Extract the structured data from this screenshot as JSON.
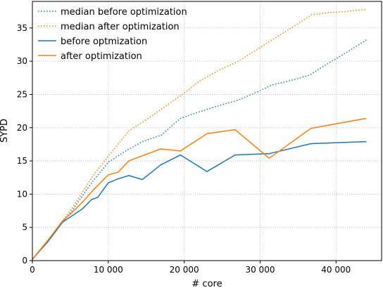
{
  "chart_data": {
    "type": "line",
    "xlabel": "# core",
    "ylabel": "SYPD",
    "xlim": [
      0,
      46000
    ],
    "ylim": [
      0,
      39
    ],
    "xticks": [
      0,
      10000,
      20000,
      30000,
      40000
    ],
    "xtick_labels": [
      "0",
      "10 000",
      "20 000",
      "30 000",
      "40 000"
    ],
    "yticks": [
      0,
      5,
      10,
      15,
      20,
      25,
      30,
      35
    ],
    "ytick_labels": [
      "0",
      "5",
      "10",
      "15",
      "20",
      "25",
      "30",
      "35"
    ],
    "grid": true,
    "legend_position": "top-left",
    "series": [
      {
        "name": "median before optimization",
        "color": "#1f77b4",
        "style": "dotted",
        "x": [
          0,
          2000,
          4000,
          5300,
          6600,
          8000,
          10000,
          12000,
          14500,
          17000,
          19500,
          22000,
          24500,
          27000,
          29500,
          31500,
          34000,
          36500,
          39000,
          41500,
          44000
        ],
        "y": [
          0.2,
          3.0,
          5.8,
          7.6,
          9.8,
          12.0,
          14.8,
          16.3,
          17.9,
          18.9,
          21.4,
          22.4,
          23.3,
          24.1,
          25.3,
          26.4,
          27.1,
          27.9,
          29.7,
          31.4,
          33.2
        ]
      },
      {
        "name": "median after optimization",
        "color": "#ff7f0e",
        "style": "dotted",
        "x": [
          0,
          2000,
          4000,
          5300,
          6600,
          8000,
          10000,
          12700,
          15000,
          17500,
          20000,
          22000,
          24500,
          27000,
          29500,
          32000,
          34500,
          36800,
          39000,
          41500,
          44000
        ],
        "y": [
          0.2,
          3.0,
          6.0,
          8.0,
          10.3,
          12.8,
          15.7,
          19.5,
          21.2,
          23.2,
          25.2,
          27.0,
          28.6,
          29.9,
          31.7,
          33.5,
          35.3,
          37.0,
          37.3,
          37.5,
          37.8
        ]
      },
      {
        "name": "before optmization",
        "color": "#1f77b4",
        "style": "solid",
        "x": [
          0,
          2000,
          4000,
          5300,
          6600,
          7800,
          8600,
          10000,
          11300,
          12700,
          14500,
          16900,
          19500,
          23000,
          26700,
          31200,
          36700,
          44000
        ],
        "y": [
          0.2,
          2.8,
          5.8,
          6.8,
          7.8,
          9.2,
          9.5,
          11.7,
          12.3,
          12.8,
          12.2,
          14.4,
          15.9,
          13.4,
          15.9,
          16.1,
          17.6,
          17.9
        ]
      },
      {
        "name": "after optimization",
        "color": "#ff7f0e",
        "style": "solid",
        "x": [
          0,
          2000,
          4000,
          5300,
          6600,
          8000,
          10000,
          11300,
          12700,
          16900,
          19500,
          23000,
          26700,
          31200,
          36700,
          44000
        ],
        "y": [
          0.2,
          3.0,
          6.0,
          7.3,
          8.8,
          10.6,
          12.9,
          13.3,
          15.0,
          16.8,
          16.5,
          19.1,
          19.7,
          15.4,
          19.9,
          21.4
        ]
      }
    ]
  }
}
